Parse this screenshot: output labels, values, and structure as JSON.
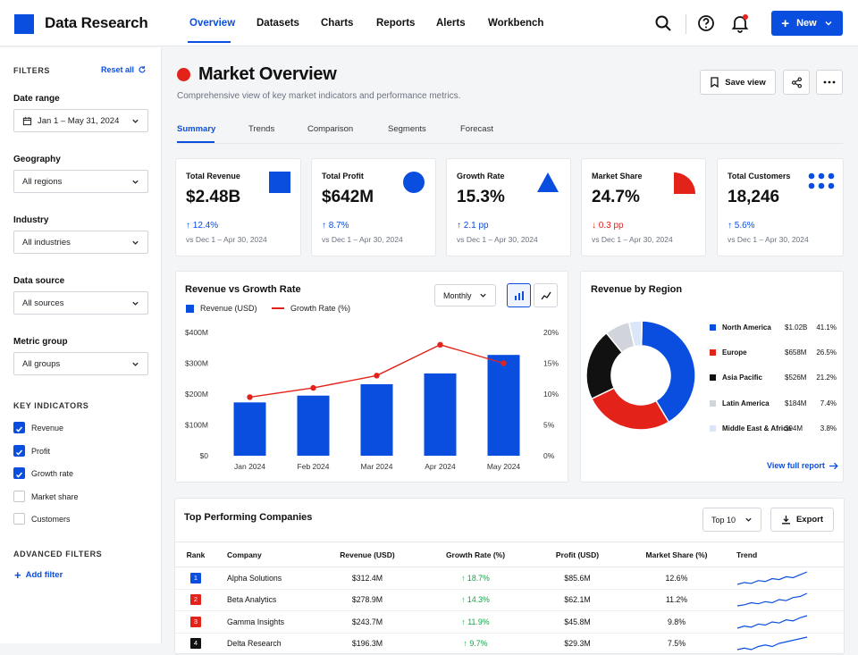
{
  "app": {
    "brand": "Data Research"
  },
  "nav": [
    "Overview",
    "Datasets",
    "Charts",
    "Reports",
    "Alerts",
    "Workbench"
  ],
  "header": {
    "new_label": "New"
  },
  "sidebar": {
    "filters_label": "FILTERS",
    "reset_label": "Reset all",
    "filters": [
      {
        "title": "Date range",
        "value": "Jan 1 – May 31, 2024"
      },
      {
        "title": "Geography",
        "value": "All regions"
      },
      {
        "title": "Industry",
        "value": "All industries"
      },
      {
        "title": "Data source",
        "value": "All sources"
      },
      {
        "title": "Metric group",
        "value": "All groups"
      }
    ],
    "key_indicators_label": "KEY INDICATORS",
    "indicators": [
      {
        "label": "Revenue",
        "checked": true
      },
      {
        "label": "Profit",
        "checked": true
      },
      {
        "label": "Growth rate",
        "checked": true
      },
      {
        "label": "Market share",
        "checked": false
      },
      {
        "label": "Customers",
        "checked": false
      }
    ],
    "advanced_label": "ADVANCED FILTERS",
    "add_filter_label": "Add filter"
  },
  "page": {
    "title": "Market Overview",
    "subtitle": "Comprehensive view of key market indicators and performance metrics.",
    "save_view_label": "Save view",
    "tabs": [
      "Summary",
      "Trends",
      "Comparison",
      "Segments",
      "Forecast"
    ]
  },
  "kpis": [
    {
      "label": "Total Revenue",
      "value": "$2.48B",
      "change": "12.4%",
      "direction": "up",
      "period": "vs Dec 1 – Apr 30, 2024",
      "shape": "square"
    },
    {
      "label": "Total Profit",
      "value": "$642M",
      "change": "8.7%",
      "direction": "up",
      "period": "vs Dec 1 – Apr 30, 2024",
      "shape": "circle"
    },
    {
      "label": "Growth Rate",
      "value": "15.3%",
      "change": "2.1 pp",
      "direction": "up",
      "period": "vs Dec 1 – Apr 30, 2024",
      "shape": "triangle"
    },
    {
      "label": "Market Share",
      "value": "24.7%",
      "change": "0.3 pp",
      "direction": "down",
      "period": "vs Dec 1 – Apr 30, 2024",
      "shape": "quarter-circle"
    },
    {
      "label": "Total Customers",
      "value": "18,246",
      "change": "5.6%",
      "direction": "up",
      "period": "vs Dec 1 – Apr 30, 2024",
      "shape": "dots"
    }
  ],
  "colors": {
    "accent": "#0a4ee0",
    "red": "#e3231a",
    "black": "#111111",
    "green": "#16a34a"
  },
  "chart_data": [
    {
      "type": "bar",
      "title": "Revenue vs Growth Rate",
      "period_select": "Monthly",
      "categories": [
        "Jan 2024",
        "Feb 2024",
        "Mar 2024",
        "Apr 2024",
        "May 2024"
      ],
      "series": [
        {
          "name": "Revenue (USD)",
          "type": "bar",
          "values": [
            173,
            195,
            232,
            267,
            327
          ],
          "color": "#0a4ee0"
        },
        {
          "name": "Growth Rate (%)",
          "type": "line",
          "values": [
            9.5,
            11,
            13,
            18,
            15
          ],
          "color": "#e3231a"
        }
      ],
      "y_left": {
        "ticks": [
          "$0",
          "$100M",
          "$200M",
          "$300M",
          "$400M"
        ],
        "range": [
          0,
          400
        ]
      },
      "y_right": {
        "ticks": [
          "0%",
          "5%",
          "10%",
          "15%",
          "20%"
        ],
        "range": [
          0,
          20
        ]
      },
      "legend": "top-left"
    },
    {
      "type": "pie",
      "title": "Revenue by Region",
      "slices": [
        {
          "name": "North America",
          "value": "$1.02B",
          "pct": 41.1,
          "pct_label": "41.1%",
          "color": "#0a4ee0"
        },
        {
          "name": "Europe",
          "value": "$658M",
          "pct": 26.5,
          "pct_label": "26.5%",
          "color": "#e3231a"
        },
        {
          "name": "Asia Pacific",
          "value": "$526M",
          "pct": 21.2,
          "pct_label": "21.2%",
          "color": "#111111"
        },
        {
          "name": "Latin America",
          "value": "$184M",
          "pct": 7.4,
          "pct_label": "7.4%",
          "color": "#d1d5db"
        },
        {
          "name": "Middle East & Africa",
          "value": "$94M",
          "pct": 3.8,
          "pct_label": "3.8%",
          "color": "#dbe7f8"
        }
      ],
      "link_label": "View full report"
    }
  ],
  "table": {
    "title": "Top Performing Companies",
    "top_select": "Top 10",
    "export_label": "Export",
    "columns": [
      "Rank",
      "Company",
      "Revenue (USD)",
      "Growth Rate (%)",
      "Profit (USD)",
      "Market Share (%)",
      "Trend"
    ],
    "rows": [
      {
        "rank": "1",
        "rank_color": "#0a4ee0",
        "company": "Alpha Solutions",
        "revenue": "$312.4M",
        "growth": "18.7%",
        "profit": "$85.6M",
        "share": "12.6%",
        "trend": [
          3,
          4,
          3.5,
          5,
          4.5,
          6,
          5.5,
          7,
          6.5,
          8,
          9.5
        ]
      },
      {
        "rank": "2",
        "rank_color": "#e3231a",
        "company": "Beta Analytics",
        "revenue": "$278.9M",
        "growth": "14.3%",
        "profit": "$62.1M",
        "share": "11.2%",
        "trend": [
          3,
          3.5,
          4.5,
          4,
          5,
          4.5,
          6,
          5.5,
          7,
          7.5,
          9
        ]
      },
      {
        "rank": "3",
        "rank_color": "#e3231a",
        "company": "Gamma Insights",
        "revenue": "$243.7M",
        "growth": "11.9%",
        "profit": "$45.8M",
        "share": "9.8%",
        "trend": [
          2.5,
          3.5,
          3,
          4.5,
          4,
          5.5,
          5,
          6.5,
          6,
          7.5,
          8.5
        ]
      },
      {
        "rank": "4",
        "rank_color": "#111111",
        "company": "Delta Research",
        "revenue": "$196.3M",
        "growth": "9.7%",
        "profit": "$29.3M",
        "share": "7.5%",
        "trend": [
          3,
          3.5,
          3,
          4,
          4.5,
          4,
          5,
          5.5,
          6,
          6.5,
          7
        ]
      }
    ]
  }
}
